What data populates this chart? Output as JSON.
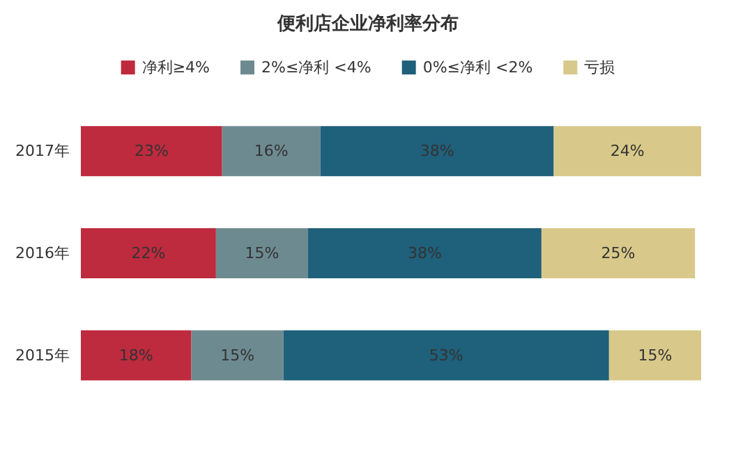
{
  "chart_data": {
    "type": "bar",
    "orientation": "horizontal",
    "stacked": true,
    "title": "便利店企业净利率分布",
    "legend": "top",
    "categories": [
      "2017年",
      "2016年",
      "2015年"
    ],
    "series": [
      {
        "name": "净利≥4%",
        "color": "#be2a3e",
        "values": [
          23,
          22,
          18
        ],
        "value_labels": [
          "23%",
          "22%",
          "18%"
        ]
      },
      {
        "name": "2%≤净利 <4%",
        "color": "#6e8a91",
        "values": [
          16,
          15,
          15
        ],
        "value_labels": [
          "16%",
          "15%",
          "15%"
        ]
      },
      {
        "name": "0%≤净利 <2%",
        "color": "#1f607b",
        "values": [
          38,
          38,
          53
        ],
        "value_labels": [
          "38%",
          "38%",
          "53%"
        ]
      },
      {
        "name": "亏损",
        "color": "#d8c98a",
        "values": [
          24,
          25,
          15
        ],
        "value_labels": [
          "24%",
          "25%",
          "15%"
        ]
      }
    ]
  }
}
